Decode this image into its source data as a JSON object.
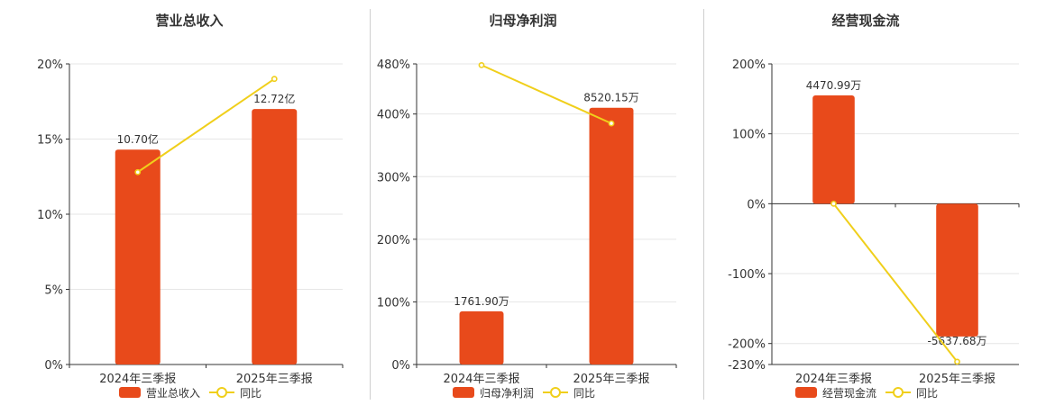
{
  "colors": {
    "bar": "#e84a1b",
    "line": "#f0cf1b",
    "grid": "#e6e6e6",
    "axis": "#333333"
  },
  "chart_data": [
    {
      "type": "bar",
      "title": "营业总收入",
      "categories": [
        "2024年三季报",
        "2025年三季报"
      ],
      "series": [
        {
          "name": "营业总收入",
          "type": "bar",
          "values": [
            14.3,
            17.0
          ],
          "labels": [
            "10.70亿",
            "12.72亿"
          ]
        },
        {
          "name": "同比",
          "type": "line",
          "values": [
            12.8,
            19.0
          ]
        }
      ],
      "ylim": [
        0,
        20
      ],
      "yticks": [
        0,
        5,
        10,
        15,
        20
      ],
      "ytick_labels": [
        "0%",
        "5%",
        "10%",
        "15%",
        "20%"
      ],
      "grid": true,
      "legend": "bottom"
    },
    {
      "type": "bar",
      "title": "归母净利润",
      "categories": [
        "2024年三季报",
        "2025年三季报"
      ],
      "series": [
        {
          "name": "归母净利润",
          "type": "bar",
          "values": [
            85,
            410
          ],
          "labels": [
            "1761.90万",
            "8520.15万"
          ]
        },
        {
          "name": "同比",
          "type": "line",
          "values": [
            478,
            385
          ]
        }
      ],
      "ylim": [
        0,
        480
      ],
      "yticks": [
        0,
        100,
        200,
        300,
        400,
        480
      ],
      "ytick_labels": [
        "0%",
        "100%",
        "200%",
        "300%",
        "400%",
        "480%"
      ],
      "grid": true,
      "legend": "bottom"
    },
    {
      "type": "bar",
      "title": "经营现金流",
      "categories": [
        "2024年三季报",
        "2025年三季报"
      ],
      "series": [
        {
          "name": "经营现金流",
          "type": "bar",
          "values": [
            155,
            -190
          ],
          "labels": [
            "4470.99万",
            "-5637.68万"
          ]
        },
        {
          "name": "同比",
          "type": "line",
          "values": [
            0,
            -226
          ]
        }
      ],
      "ylim": [
        -230,
        200
      ],
      "yticks": [
        -230,
        -200,
        -100,
        0,
        100,
        200
      ],
      "ytick_labels": [
        "-230%",
        "-200%",
        "-100%",
        "0%",
        "100%",
        "200%"
      ],
      "grid": true,
      "legend": "bottom"
    }
  ]
}
